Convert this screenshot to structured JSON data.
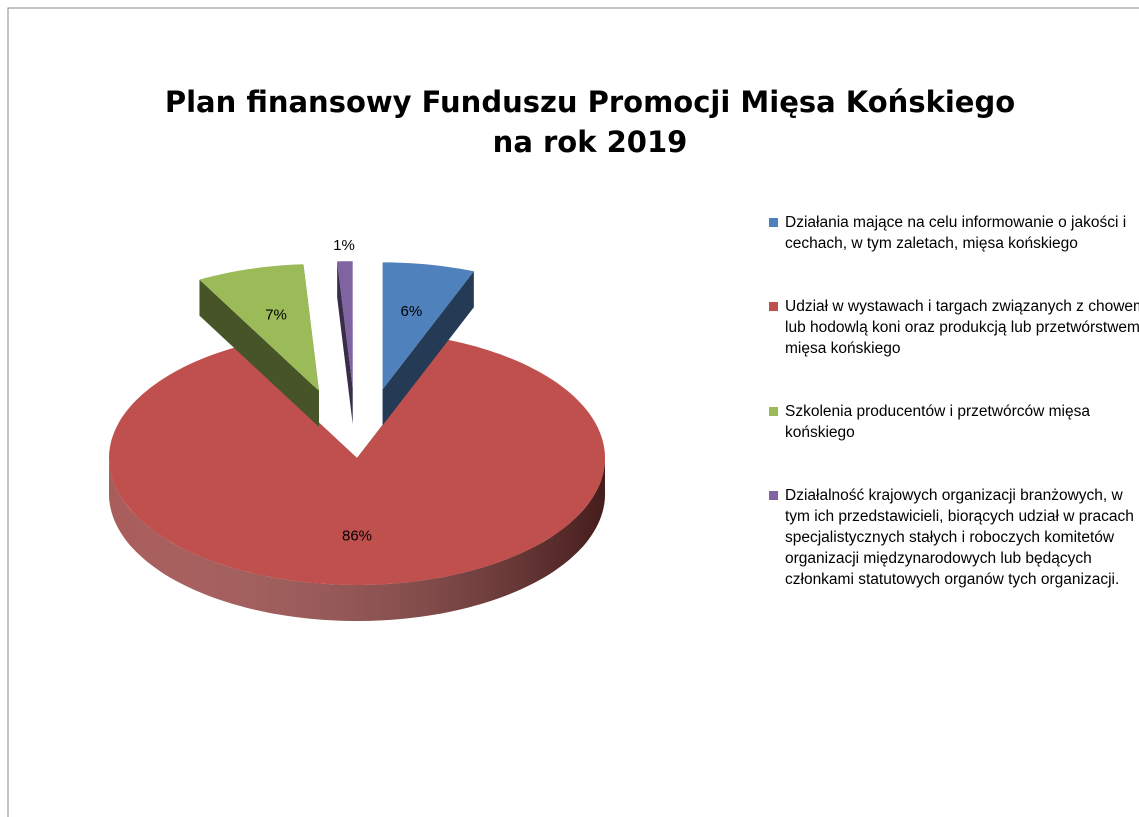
{
  "chart_data": {
    "type": "pie3d",
    "title": [
      "Plan finansowy Funduszu Promocji Mięsa Końskiego",
      "na rok 2019"
    ],
    "categories": [
      "Działania mające na celu informowanie o jakości i cechach, w tym zaletach, mięsa końskiego",
      "Udział w wystawach i targach związanych z chowem lub hodowlą koni oraz produkcją lub przetwórstwem mięsa końskiego",
      "Szkolenia producentów i przetwórców mięsa końskiego",
      "Działalność krajowych organizacji branżowych, w tym ich przedstawicieli, biorących udział w pracach specjalistycznych stałych i roboczych komitetów organizacji międzynarodowych lub będących członkami statutowych organów tych organizacji."
    ],
    "values": [
      6,
      86,
      7,
      1
    ],
    "value_labels": [
      "6%",
      "86%",
      "7%",
      "1%"
    ],
    "colors": [
      "#4f81bd",
      "#c0504d",
      "#9bbb59",
      "#8064a2"
    ],
    "exploded": [
      true,
      false,
      true,
      true
    ],
    "legend": "right"
  }
}
